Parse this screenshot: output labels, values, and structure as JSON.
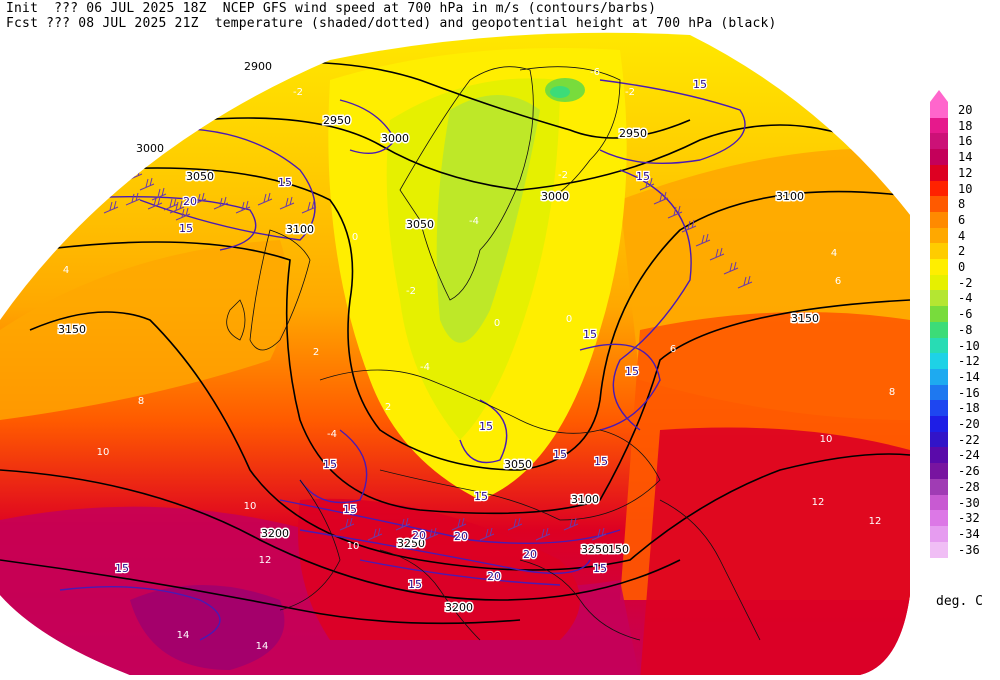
{
  "header": {
    "line1": "Init  ??? 06 JUL 2025 18Z  NCEP GFS wind speed at 700 hPa in m/s (contours/barbs)",
    "line2": "Fcst ??? 08 JUL 2025 21Z  temperature (shaded/dotted) and geopotential height at 700 hPa (black)"
  },
  "colorbar": {
    "units": "deg. C",
    "levels": [
      {
        "label": "20",
        "color": "#ff66cc"
      },
      {
        "label": "18",
        "color": "#e6198c"
      },
      {
        "label": "16",
        "color": "#cc1177"
      },
      {
        "label": "14",
        "color": "#c4005a"
      },
      {
        "label": "12",
        "color": "#dd0022"
      },
      {
        "label": "10",
        "color": "#ff2200"
      },
      {
        "label": "8",
        "color": "#ff5a00"
      },
      {
        "label": "6",
        "color": "#ff8a00"
      },
      {
        "label": "4",
        "color": "#ffa800"
      },
      {
        "label": "2",
        "color": "#ffcc00"
      },
      {
        "label": "0",
        "color": "#ffee00"
      },
      {
        "label": "-2",
        "color": "#e6f000"
      },
      {
        "label": "-4",
        "color": "#b4e632"
      },
      {
        "label": "-6",
        "color": "#78dc3c"
      },
      {
        "label": "-8",
        "color": "#3cdc78"
      },
      {
        "label": "-10",
        "color": "#28dcb4"
      },
      {
        "label": "-12",
        "color": "#1ed2e6"
      },
      {
        "label": "-14",
        "color": "#1eaaf0"
      },
      {
        "label": "-16",
        "color": "#1e78f0"
      },
      {
        "label": "-18",
        "color": "#1e46f0"
      },
      {
        "label": "-20",
        "color": "#1e1ee6"
      },
      {
        "label": "-22",
        "color": "#3214c8"
      },
      {
        "label": "-24",
        "color": "#5a0aaa"
      },
      {
        "label": "-26",
        "color": "#7814a0"
      },
      {
        "label": "-28",
        "color": "#a03cb4"
      },
      {
        "label": "-30",
        "color": "#c85ad2"
      },
      {
        "label": "-32",
        "color": "#dc78e6"
      },
      {
        "label": "-34",
        "color": "#e69cf0"
      },
      {
        "label": "-36",
        "color": "#f0bef5"
      }
    ]
  },
  "height_labels": [
    "2900",
    "2950",
    "2950",
    "3000",
    "3000",
    "3000",
    "3050",
    "3050",
    "3050",
    "3100",
    "3100",
    "3100",
    "3150",
    "3150",
    "3150",
    "3200",
    "3200",
    "3250",
    "3250"
  ],
  "wind_labels": [
    "15",
    "15",
    "15",
    "15",
    "15",
    "15",
    "15",
    "15",
    "15",
    "15",
    "15",
    "15",
    "15",
    "15",
    "15",
    "20",
    "20",
    "20",
    "20",
    "20"
  ],
  "temp_labels": [
    "-2",
    "-2",
    "-2",
    "-2",
    "0",
    "0",
    "0",
    "-4",
    "-4",
    "-4",
    "-6",
    "2",
    "2",
    "4",
    "4",
    "6",
    "6",
    "8",
    "8",
    "10",
    "10",
    "10",
    "10",
    "12",
    "12",
    "12",
    "14",
    "14"
  ]
}
